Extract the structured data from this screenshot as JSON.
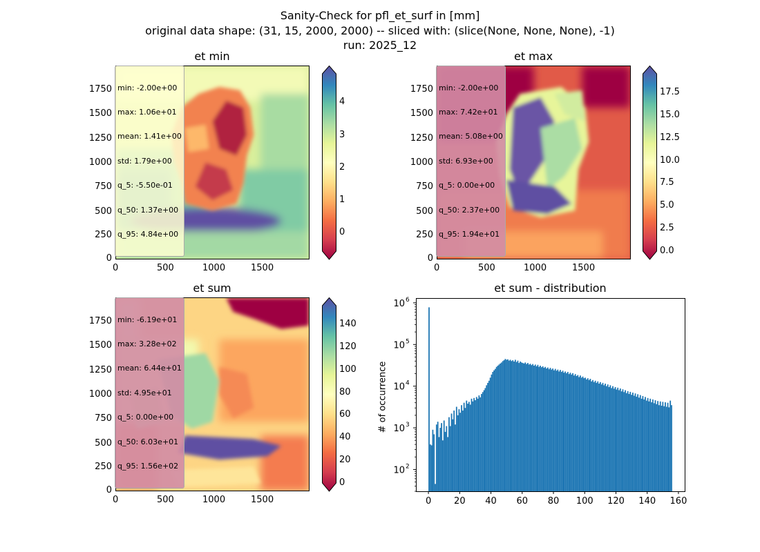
{
  "figure": {
    "title_line1": "Sanity-Check for pfl_et_surf in [mm]",
    "title_line2": "original data shape: (31, 15, 2000, 2000) -- sliced with: (slice(None, None, None), -1)",
    "title_line3": "run: 2025_12"
  },
  "panels": {
    "et_min": {
      "title": "et min",
      "stats": [
        "min: -2.00e+00",
        "max: 1.06e+01",
        "mean: 1.41e+00",
        "std: 1.79e+00",
        "q_5: -5.50e-01",
        "q_50: 1.37e+00",
        "q_95: 4.84e+00"
      ],
      "xticks": [
        "0",
        "500",
        "1000",
        "1500"
      ],
      "yticks": [
        "0",
        "250",
        "500",
        "750",
        "1000",
        "1250",
        "1500",
        "1750"
      ],
      "cbar_ticks": [
        "0",
        "1",
        "2",
        "3",
        "4"
      ],
      "colorbar_range": [
        -0.55,
        4.84
      ]
    },
    "et_max": {
      "title": "et max",
      "stats": [
        "min: -2.00e+00",
        "max: 7.42e+01",
        "mean: 5.08e+00",
        "std: 6.93e+00",
        "q_5: 0.00e+00",
        "q_50: 2.37e+00",
        "q_95: 1.94e+01"
      ],
      "xticks": [
        "0",
        "500",
        "1000",
        "1500"
      ],
      "yticks": [
        "0",
        "250",
        "500",
        "750",
        "1000",
        "1250",
        "1500",
        "1750"
      ],
      "cbar_ticks": [
        "0.0",
        "2.5",
        "5.0",
        "7.5",
        "10.0",
        "12.5",
        "15.0",
        "17.5"
      ],
      "colorbar_range": [
        0.0,
        19.4
      ]
    },
    "et_sum": {
      "title": "et sum",
      "stats": [
        "min: -6.19e+01",
        "max: 3.28e+02",
        "mean: 6.44e+01",
        "std: 4.95e+01",
        "q_5: 0.00e+00",
        "q_50: 6.03e+01",
        "q_95: 1.56e+02"
      ],
      "xticks": [
        "0",
        "500",
        "1000",
        "1500"
      ],
      "yticks": [
        "0",
        "250",
        "500",
        "750",
        "1000",
        "1250",
        "1500",
        "1750"
      ],
      "cbar_ticks": [
        "0",
        "20",
        "40",
        "60",
        "80",
        "100",
        "120",
        "140"
      ],
      "colorbar_range": [
        0,
        156
      ]
    }
  },
  "colormap": "Spectral",
  "chart_data": [
    {
      "type": "heatmap",
      "title": "et min",
      "xlim": [
        0,
        2000
      ],
      "ylim": [
        0,
        2000
      ],
      "colorbar_range": [
        -0.55,
        4.84
      ]
    },
    {
      "type": "heatmap",
      "title": "et max",
      "xlim": [
        0,
        2000
      ],
      "ylim": [
        0,
        2000
      ],
      "colorbar_range": [
        0.0,
        19.4
      ]
    },
    {
      "type": "heatmap",
      "title": "et sum",
      "xlim": [
        0,
        2000
      ],
      "ylim": [
        0,
        2000
      ],
      "colorbar_range": [
        0,
        156
      ]
    },
    {
      "type": "bar",
      "title": "et sum - distribution",
      "ylabel": "# of occurrence",
      "xlabel": "",
      "yscale": "log",
      "xlim": [
        -8,
        164
      ],
      "ylim": [
        30,
        1300000
      ],
      "xticks": [
        "0",
        "20",
        "40",
        "60",
        "80",
        "100",
        "120",
        "140",
        "160"
      ],
      "yticks": [
        "10",
        "10",
        "10",
        "10",
        "10"
      ],
      "ytick_exponents": [
        "2",
        "3",
        "4",
        "5",
        "6"
      ],
      "bar_color": "#1f77b4",
      "bin_width": 0.8,
      "bins": [
        {
          "x": 0.0,
          "y": 780000
        },
        {
          "x": 0.8,
          "y": 400
        },
        {
          "x": 1.6,
          "y": 380
        },
        {
          "x": 2.4,
          "y": 900
        },
        {
          "x": 3.2,
          "y": 700
        },
        {
          "x": 4.0,
          "y": 45
        },
        {
          "x": 4.8,
          "y": 1200
        },
        {
          "x": 5.6,
          "y": 1400
        },
        {
          "x": 6.4,
          "y": 600
        },
        {
          "x": 7.2,
          "y": 1000
        },
        {
          "x": 8.0,
          "y": 1300
        },
        {
          "x": 8.8,
          "y": 500
        },
        {
          "x": 9.6,
          "y": 1500
        },
        {
          "x": 10.4,
          "y": 800
        },
        {
          "x": 11.2,
          "y": 1100
        },
        {
          "x": 12.0,
          "y": 600
        },
        {
          "x": 12.8,
          "y": 1800
        },
        {
          "x": 13.6,
          "y": 1100
        },
        {
          "x": 14.4,
          "y": 2200
        },
        {
          "x": 15.2,
          "y": 1600
        },
        {
          "x": 16.0,
          "y": 2600
        },
        {
          "x": 16.8,
          "y": 1200
        },
        {
          "x": 17.6,
          "y": 3200
        },
        {
          "x": 18.4,
          "y": 2000
        },
        {
          "x": 19.2,
          "y": 2800
        },
        {
          "x": 20.0,
          "y": 2300
        },
        {
          "x": 20.8,
          "y": 3500
        },
        {
          "x": 21.6,
          "y": 2600
        },
        {
          "x": 22.4,
          "y": 4000
        },
        {
          "x": 23.2,
          "y": 3000
        },
        {
          "x": 24.0,
          "y": 4500
        },
        {
          "x": 24.8,
          "y": 3800
        },
        {
          "x": 25.6,
          "y": 4200
        },
        {
          "x": 26.4,
          "y": 3600
        },
        {
          "x": 27.2,
          "y": 5000
        },
        {
          "x": 28.0,
          "y": 4300
        },
        {
          "x": 28.8,
          "y": 5200
        },
        {
          "x": 29.6,
          "y": 4600
        },
        {
          "x": 30.4,
          "y": 5500
        },
        {
          "x": 31.2,
          "y": 5000
        },
        {
          "x": 32.0,
          "y": 6000
        },
        {
          "x": 32.8,
          "y": 5400
        },
        {
          "x": 33.6,
          "y": 6500
        },
        {
          "x": 34.4,
          "y": 7200
        },
        {
          "x": 35.2,
          "y": 8000
        },
        {
          "x": 36.0,
          "y": 9000
        },
        {
          "x": 36.8,
          "y": 10500
        },
        {
          "x": 37.6,
          "y": 12000
        },
        {
          "x": 38.4,
          "y": 13500
        },
        {
          "x": 39.2,
          "y": 16000
        },
        {
          "x": 40.0,
          "y": 19000
        },
        {
          "x": 40.8,
          "y": 22000
        },
        {
          "x": 41.6,
          "y": 24000
        },
        {
          "x": 42.4,
          "y": 26000
        },
        {
          "x": 43.2,
          "y": 29000
        },
        {
          "x": 44.0,
          "y": 31000
        },
        {
          "x": 44.8,
          "y": 33000
        },
        {
          "x": 45.6,
          "y": 35000
        },
        {
          "x": 46.4,
          "y": 37000
        },
        {
          "x": 47.2,
          "y": 40000
        },
        {
          "x": 48.0,
          "y": 42000
        },
        {
          "x": 48.8,
          "y": 45000
        },
        {
          "x": 49.6,
          "y": 43000
        },
        {
          "x": 50.4,
          "y": 44000
        },
        {
          "x": 51.2,
          "y": 41000
        },
        {
          "x": 52.0,
          "y": 43000
        },
        {
          "x": 52.8,
          "y": 40000
        },
        {
          "x": 53.6,
          "y": 42000
        },
        {
          "x": 54.4,
          "y": 39000
        },
        {
          "x": 55.2,
          "y": 43000
        },
        {
          "x": 56.0,
          "y": 38000
        },
        {
          "x": 56.8,
          "y": 41000
        },
        {
          "x": 57.6,
          "y": 36000
        },
        {
          "x": 58.4,
          "y": 39000
        },
        {
          "x": 59.2,
          "y": 37000
        },
        {
          "x": 60.0,
          "y": 36000
        },
        {
          "x": 60.8,
          "y": 35000
        },
        {
          "x": 61.6,
          "y": 37000
        },
        {
          "x": 62.4,
          "y": 34000
        },
        {
          "x": 63.2,
          "y": 36000
        },
        {
          "x": 64.0,
          "y": 33000
        },
        {
          "x": 64.8,
          "y": 34500
        },
        {
          "x": 65.6,
          "y": 32000
        },
        {
          "x": 66.4,
          "y": 34000
        },
        {
          "x": 67.2,
          "y": 31000
        },
        {
          "x": 68.0,
          "y": 33000
        },
        {
          "x": 68.8,
          "y": 30000
        },
        {
          "x": 69.6,
          "y": 32500
        },
        {
          "x": 70.4,
          "y": 29000
        },
        {
          "x": 71.2,
          "y": 31000
        },
        {
          "x": 72.0,
          "y": 28500
        },
        {
          "x": 72.8,
          "y": 30000
        },
        {
          "x": 73.6,
          "y": 27500
        },
        {
          "x": 74.4,
          "y": 29000
        },
        {
          "x": 75.2,
          "y": 26500
        },
        {
          "x": 76.0,
          "y": 28000
        },
        {
          "x": 76.8,
          "y": 25500
        },
        {
          "x": 77.6,
          "y": 27500
        },
        {
          "x": 78.4,
          "y": 25000
        },
        {
          "x": 79.2,
          "y": 26500
        },
        {
          "x": 80.0,
          "y": 24000
        },
        {
          "x": 80.8,
          "y": 26000
        },
        {
          "x": 81.6,
          "y": 23500
        },
        {
          "x": 82.4,
          "y": 25000
        },
        {
          "x": 83.2,
          "y": 22500
        },
        {
          "x": 84.0,
          "y": 24500
        },
        {
          "x": 84.8,
          "y": 22000
        },
        {
          "x": 85.6,
          "y": 23500
        },
        {
          "x": 86.4,
          "y": 21000
        },
        {
          "x": 87.2,
          "y": 22500
        },
        {
          "x": 88.0,
          "y": 20500
        },
        {
          "x": 88.8,
          "y": 22000
        },
        {
          "x": 89.6,
          "y": 19500
        },
        {
          "x": 90.4,
          "y": 21000
        },
        {
          "x": 91.2,
          "y": 19000
        },
        {
          "x": 92.0,
          "y": 20500
        },
        {
          "x": 92.8,
          "y": 18000
        },
        {
          "x": 93.6,
          "y": 19500
        },
        {
          "x": 94.4,
          "y": 17500
        },
        {
          "x": 95.2,
          "y": 18500
        },
        {
          "x": 96.0,
          "y": 16500
        },
        {
          "x": 96.8,
          "y": 18000
        },
        {
          "x": 97.6,
          "y": 16000
        },
        {
          "x": 98.4,
          "y": 17000
        },
        {
          "x": 99.2,
          "y": 15500
        },
        {
          "x": 100.0,
          "y": 16000
        },
        {
          "x": 100.8,
          "y": 14500
        },
        {
          "x": 101.6,
          "y": 15500
        },
        {
          "x": 102.4,
          "y": 14000
        },
        {
          "x": 103.2,
          "y": 15000
        },
        {
          "x": 104.0,
          "y": 13000
        },
        {
          "x": 104.8,
          "y": 14000
        },
        {
          "x": 105.6,
          "y": 12500
        },
        {
          "x": 106.4,
          "y": 13500
        },
        {
          "x": 107.2,
          "y": 12000
        },
        {
          "x": 108.0,
          "y": 13000
        },
        {
          "x": 108.8,
          "y": 11500
        },
        {
          "x": 109.6,
          "y": 12500
        },
        {
          "x": 110.4,
          "y": 11000
        },
        {
          "x": 111.2,
          "y": 12000
        },
        {
          "x": 112.0,
          "y": 10500
        },
        {
          "x": 112.8,
          "y": 11500
        },
        {
          "x": 113.6,
          "y": 10000
        },
        {
          "x": 114.4,
          "y": 11000
        },
        {
          "x": 115.2,
          "y": 9500
        },
        {
          "x": 116.0,
          "y": 10500
        },
        {
          "x": 116.8,
          "y": 9000
        },
        {
          "x": 117.6,
          "y": 10000
        },
        {
          "x": 118.4,
          "y": 8700
        },
        {
          "x": 119.2,
          "y": 9500
        },
        {
          "x": 120.0,
          "y": 8300
        },
        {
          "x": 120.8,
          "y": 9200
        },
        {
          "x": 121.6,
          "y": 8000
        },
        {
          "x": 122.4,
          "y": 8800
        },
        {
          "x": 123.2,
          "y": 7500
        },
        {
          "x": 124.0,
          "y": 8400
        },
        {
          "x": 124.8,
          "y": 7200
        },
        {
          "x": 125.6,
          "y": 8000
        },
        {
          "x": 126.4,
          "y": 6800
        },
        {
          "x": 127.2,
          "y": 7600
        },
        {
          "x": 128.0,
          "y": 6500
        },
        {
          "x": 128.8,
          "y": 7300
        },
        {
          "x": 129.6,
          "y": 6200
        },
        {
          "x": 130.4,
          "y": 7000
        },
        {
          "x": 131.2,
          "y": 5900
        },
        {
          "x": 132.0,
          "y": 6700
        },
        {
          "x": 132.8,
          "y": 5600
        },
        {
          "x": 133.6,
          "y": 6400
        },
        {
          "x": 134.4,
          "y": 5300
        },
        {
          "x": 135.2,
          "y": 6100
        },
        {
          "x": 136.0,
          "y": 5000
        },
        {
          "x": 136.8,
          "y": 5800
        },
        {
          "x": 137.6,
          "y": 4800
        },
        {
          "x": 138.4,
          "y": 5500
        },
        {
          "x": 139.2,
          "y": 4500
        },
        {
          "x": 140.0,
          "y": 5200
        },
        {
          "x": 140.8,
          "y": 4300
        },
        {
          "x": 141.6,
          "y": 5000
        },
        {
          "x": 142.4,
          "y": 4100
        },
        {
          "x": 143.2,
          "y": 4800
        },
        {
          "x": 144.0,
          "y": 3900
        },
        {
          "x": 144.8,
          "y": 4600
        },
        {
          "x": 145.6,
          "y": 3700
        },
        {
          "x": 146.4,
          "y": 4400
        },
        {
          "x": 147.2,
          "y": 3500
        },
        {
          "x": 148.0,
          "y": 4300
        },
        {
          "x": 148.8,
          "y": 3400
        },
        {
          "x": 149.6,
          "y": 4200
        },
        {
          "x": 150.4,
          "y": 3300
        },
        {
          "x": 151.2,
          "y": 4100
        },
        {
          "x": 152.0,
          "y": 3200
        },
        {
          "x": 152.8,
          "y": 4000
        },
        {
          "x": 153.6,
          "y": 3100
        },
        {
          "x": 154.4,
          "y": 4500
        },
        {
          "x": 155.2,
          "y": 3500
        }
      ]
    }
  ]
}
